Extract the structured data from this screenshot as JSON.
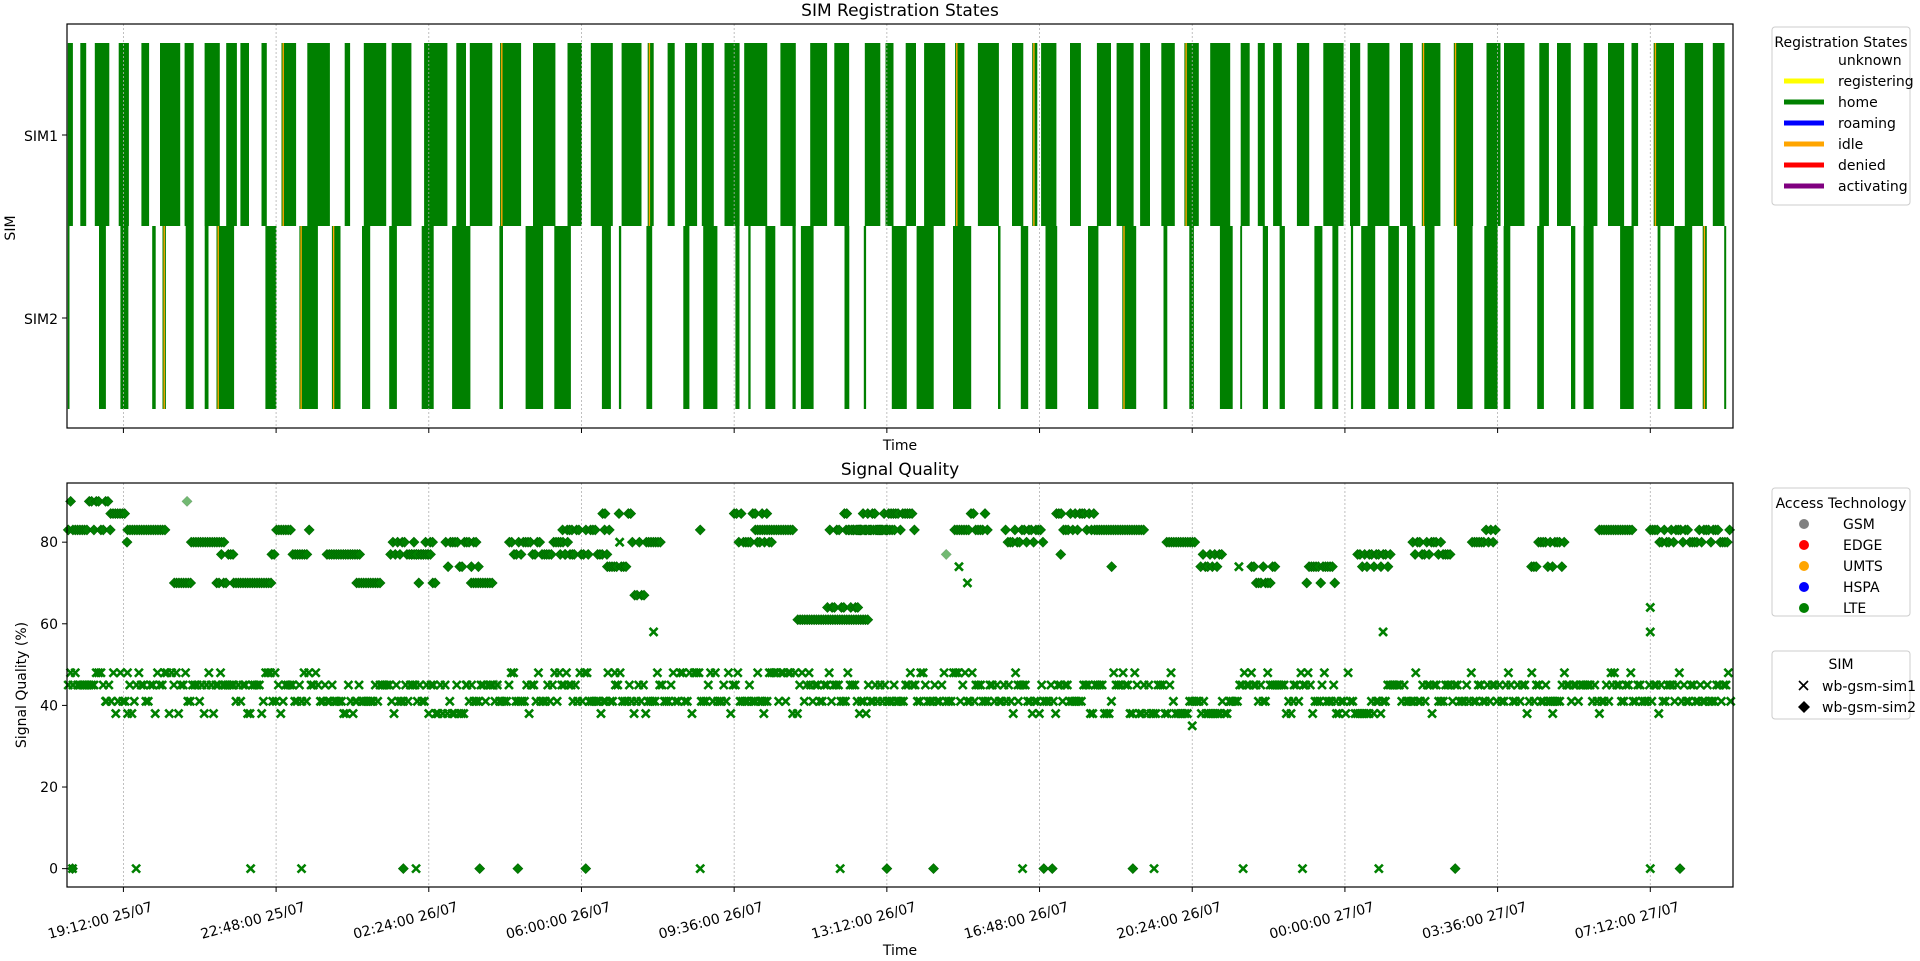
{
  "colors": {
    "green": "#008000",
    "gsm": "#808080",
    "edge": "#ff0000",
    "umts": "#ffa500",
    "hspa": "#0000ff",
    "lte": "#008000",
    "unknown": "#ffffff",
    "registering": "#ffff00",
    "home": "#008000",
    "roaming": "#0000ff",
    "idle": "#ffa500",
    "denied": "#ff0000",
    "activating": "#800080",
    "grid": "#b0b0b0"
  },
  "chart_data": [
    {
      "type": "timeline",
      "title": "SIM Registration States",
      "xlabel": "Time",
      "ylabel": "SIM",
      "categories": [
        "SIM1",
        "SIM2"
      ],
      "x_ticks": [
        "19:12:00 25/07",
        "22:48:00 25/07",
        "02:24:00 26/07",
        "06:00:00 26/07",
        "09:36:00 26/07",
        "13:12:00 26/07",
        "16:48:00 26/07",
        "20:24:00 26/07",
        "00:00:00 27/07",
        "03:36:00 27/07",
        "07:12:00 27/07"
      ],
      "x_range_hours_from_19_12_25_07": [
        -1.33,
        37.95
      ],
      "grid": "vertical dotted",
      "legend_title": "Registration States",
      "legend_placement": "outside right",
      "legend": [
        {
          "label": "unknown",
          "color": "#ffffff"
        },
        {
          "label": "registering",
          "color": "#ffff00"
        },
        {
          "label": "home",
          "color": "#008000"
        },
        {
          "label": "roaming",
          "color": "#0000ff"
        },
        {
          "label": "idle",
          "color": "#ffa500"
        },
        {
          "label": "denied",
          "color": "#ff0000"
        },
        {
          "label": "activating",
          "color": "#800080"
        }
      ],
      "state_pattern": {
        "SIM1": "mostly home (green) with frequent short gaps, dense home blocks 19:00-05:00 25/07-26/07 and 10:00-14:00 26/07, sparse idle (orange) slivers",
        "SIM2": "intermittent home (green) bars throughout, gaps wider after 21:00 26/07, a few idle (orange) slivers"
      }
    },
    {
      "type": "scatter",
      "title": "Signal Quality",
      "xlabel": "Time",
      "ylabel": "Signal Quality (%)",
      "ylim": [
        -4.5,
        94.5
      ],
      "y_ticks": [
        0,
        20,
        40,
        60,
        80
      ],
      "x_ticks": [
        "19:12:00 25/07",
        "22:48:00 25/07",
        "02:24:00 26/07",
        "06:00:00 26/07",
        "09:36:00 26/07",
        "13:12:00 26/07",
        "16:48:00 26/07",
        "20:24:00 26/07",
        "00:00:00 27/07",
        "03:36:00 27/07",
        "07:12:00 27/07"
      ],
      "grid": "vertical dotted",
      "legend_tech_title": "Access Technology",
      "legend_tech": [
        {
          "label": "GSM",
          "color": "#808080"
        },
        {
          "label": "EDGE",
          "color": "#ff0000"
        },
        {
          "label": "UMTS",
          "color": "#ffa500"
        },
        {
          "label": "HSPA",
          "color": "#0000ff"
        },
        {
          "label": "LTE",
          "color": "#008000"
        }
      ],
      "legend_sim_title": "SIM",
      "legend_sim": [
        {
          "label": "wb-gsm-sim1",
          "marker": "x"
        },
        {
          "label": "wb-gsm-sim2",
          "marker": "diamond"
        }
      ],
      "series": [
        {
          "name": "wb-gsm-sim1",
          "marker": "x",
          "technology": "LTE",
          "segments": [
            [
              -1.3,
              -0.4,
              48,
              45
            ],
            [
              -0.4,
              0.2,
              45,
              41
            ],
            [
              0.2,
              2.6,
              45,
              48
            ],
            [
              2.6,
              3.3,
              41,
              45
            ],
            [
              3.3,
              3.6,
              48,
              41
            ],
            [
              3.6,
              5.5,
              41,
              45
            ],
            [
              5.5,
              7.2,
              41,
              45
            ],
            [
              7.2,
              8.1,
              38,
              45
            ],
            [
              8.1,
              9.4,
              45,
              41
            ],
            [
              9.4,
              10.6,
              41,
              45
            ],
            [
              10.6,
              11.6,
              41,
              48
            ],
            [
              11.6,
              12.8,
              45,
              41
            ],
            [
              12.8,
              14.1,
              48,
              41
            ],
            [
              14.1,
              14.9,
              41,
              45
            ],
            [
              14.9,
              16.2,
              48,
              41
            ],
            [
              16.2,
              17.4,
              45,
              41
            ],
            [
              17.4,
              18.8,
              41,
              45
            ],
            [
              18.8,
              20.1,
              48,
              41
            ],
            [
              20.1,
              21.1,
              45,
              41
            ],
            [
              21.1,
              22.8,
              45,
              41
            ],
            [
              22.8,
              24.7,
              38,
              45
            ],
            [
              24.7,
              26.1,
              41,
              38
            ],
            [
              26.1,
              27.6,
              41,
              45
            ],
            [
              27.6,
              28.6,
              41,
              45
            ],
            [
              28.6,
              29.7,
              38,
              41
            ],
            [
              29.7,
              30.9,
              41,
              45
            ],
            [
              30.9,
              32.6,
              41,
              45
            ],
            [
              32.6,
              33.7,
              41,
              45
            ],
            [
              33.7,
              35.1,
              45,
              41
            ],
            [
              35.1,
              36.3,
              41,
              45
            ],
            [
              36.3,
              37.9,
              41,
              45
            ]
          ],
          "outliers": [
            [
              -1.2,
              0
            ],
            [
              0.3,
              0
            ],
            [
              3.0,
              0
            ],
            [
              4.2,
              0
            ],
            [
              6.9,
              0
            ],
            [
              13.6,
              0
            ],
            [
              16.9,
              0
            ],
            [
              21.2,
              0
            ],
            [
              24.3,
              0
            ],
            [
              26.4,
              0
            ],
            [
              27.8,
              0
            ],
            [
              29.6,
              0
            ],
            [
              36.0,
              0
            ],
            [
              0.1,
              38
            ],
            [
              7.4,
              38
            ],
            [
              15.1,
              38
            ],
            [
              25.2,
              35
            ],
            [
              29.7,
              58
            ],
            [
              36.0,
              58
            ],
            [
              36.0,
              64
            ],
            [
              26.3,
              74
            ],
            [
              19.7,
              74
            ],
            [
              19.9,
              70
            ],
            [
              12.5,
              58
            ],
            [
              11.7,
              80
            ]
          ]
        },
        {
          "name": "wb-gsm-sim2",
          "marker": "diamond",
          "technology": "LTE",
          "segments": [
            [
              -1.3,
              -0.3,
              83,
              90
            ],
            [
              -0.3,
              0.1,
              87,
              80
            ],
            [
              0.1,
              1.0,
              83,
              83
            ],
            [
              1.2,
              1.6,
              70,
              70
            ],
            [
              1.6,
              2.4,
              80,
              80
            ],
            [
              2.2,
              2.6,
              77,
              70
            ],
            [
              2.6,
              3.5,
              70,
              70
            ],
            [
              3.5,
              4.4,
              83,
              77
            ],
            [
              4.8,
              5.6,
              77,
              77
            ],
            [
              5.5,
              6.1,
              70,
              70
            ],
            [
              6.3,
              7.3,
              77,
              80
            ],
            [
              6.8,
              7.4,
              77,
              70
            ],
            [
              7.6,
              8.4,
              74,
              80
            ],
            [
              8.2,
              8.7,
              70,
              70
            ],
            [
              9.1,
              10.6,
              80,
              77
            ],
            [
              10.3,
              11.5,
              83,
              77
            ],
            [
              11.3,
              12.0,
              87,
              74
            ],
            [
              12.0,
              12.7,
              80,
              67
            ],
            [
              14.4,
              15.3,
              80,
              87
            ],
            [
              14.9,
              15.8,
              83,
              83
            ],
            [
              15.9,
              17.6,
              61,
              61
            ],
            [
              16.6,
              17.4,
              64,
              83
            ],
            [
              17.0,
              18.7,
              87,
              83
            ],
            [
              17.3,
              18.2,
              83,
              83
            ],
            [
              19.6,
              20.4,
              83,
              87
            ],
            [
              20.8,
              21.7,
              80,
              83
            ],
            [
              22.0,
              22.9,
              83,
              87
            ],
            [
              22.9,
              24.1,
              83,
              83
            ],
            [
              24.6,
              25.3,
              80,
              80
            ],
            [
              25.4,
              25.9,
              77,
              74
            ],
            [
              26.6,
              27.2,
              74,
              70
            ],
            [
              27.9,
              28.6,
              70,
              74
            ],
            [
              29.1,
              29.9,
              74,
              77
            ],
            [
              30.4,
              31.3,
              77,
              80
            ],
            [
              31.8,
              32.4,
              83,
              80
            ],
            [
              33.2,
              34.0,
              74,
              80
            ],
            [
              34.8,
              35.6,
              83,
              83
            ],
            [
              36.0,
              37.9,
              80,
              83
            ]
          ],
          "outliers": [
            [
              -1.2,
              0
            ],
            [
              6.6,
              0
            ],
            [
              8.4,
              0
            ],
            [
              10.9,
              0
            ],
            [
              18.0,
              0
            ],
            [
              19.1,
              0
            ],
            [
              23.8,
              0
            ],
            [
              31.4,
              0
            ],
            [
              36.7,
              0
            ],
            [
              9.3,
              0
            ],
            [
              21.7,
              0
            ],
            [
              21.9,
              0
            ],
            [
              13.6,
              83
            ],
            [
              23.3,
              74
            ],
            [
              22.1,
              77
            ],
            [
              19.4,
              77
            ],
            [
              1.5,
              90
            ],
            [
              8.8,
              45
            ]
          ]
        }
      ]
    }
  ]
}
